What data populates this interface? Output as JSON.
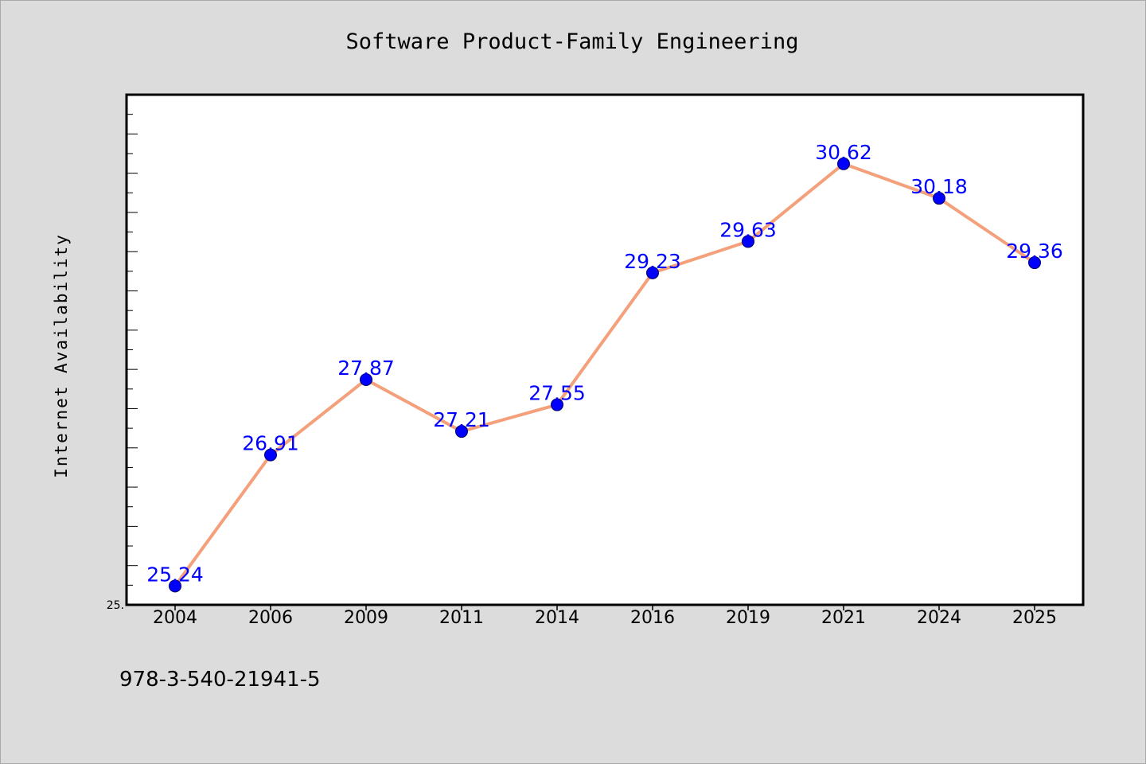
{
  "chart_data": {
    "type": "line",
    "title": "Software Product-Family Engineering",
    "xlabel": "",
    "ylabel": "Internet Availability",
    "categories": [
      "2004",
      "2006",
      "2009",
      "2011",
      "2014",
      "2016",
      "2019",
      "2021",
      "2024",
      "2025"
    ],
    "series": [
      {
        "values": [
          25.24,
          26.91,
          27.87,
          27.21,
          27.55,
          29.23,
          29.63,
          30.62,
          30.18,
          29.36
        ],
        "labels": [
          "25.24",
          "26.91",
          "27.87",
          "27.21",
          "27.55",
          "29.23",
          "29.63",
          "30.62",
          "30.18",
          "29.36"
        ]
      }
    ],
    "ylim": [
      25.0,
      31.5
    ],
    "yticks_labels": [
      "25."
    ],
    "grid": false,
    "line_color": "#f4a07a",
    "marker_color": "#0000ff",
    "label_color": "#0000ff"
  },
  "footnote": "978-3-540-21941-5",
  "colors": {
    "background": "#dcdcdc",
    "plot_area": "#ffffff"
  }
}
